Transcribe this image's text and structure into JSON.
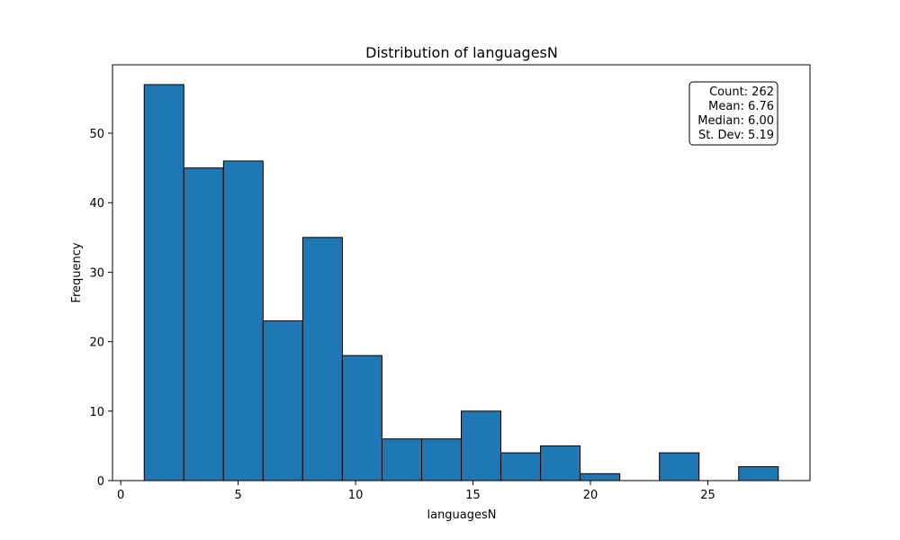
{
  "chart_data": {
    "type": "bar",
    "title": "Distribution of languagesN",
    "xlabel": "languagesN",
    "ylabel": "Frequency",
    "xlim": [
      -0.35,
      29.35
    ],
    "ylim": [
      0,
      59.85
    ],
    "x_ticks": [
      0,
      5,
      10,
      15,
      20,
      25
    ],
    "y_ticks": [
      0,
      10,
      20,
      30,
      40,
      50
    ],
    "bins": {
      "start": 1,
      "end": 28,
      "count": 16
    },
    "values": [
      57,
      45,
      46,
      23,
      35,
      18,
      6,
      6,
      10,
      4,
      5,
      1,
      0,
      4,
      0,
      2
    ],
    "bar_color": "#1f77b4",
    "edge_color": "#000000",
    "grid": false,
    "stats": {
      "count": "Count: 262",
      "mean": "Mean: 6.76",
      "median": "Median: 6.00",
      "std": "St. Dev: 5.19"
    }
  }
}
